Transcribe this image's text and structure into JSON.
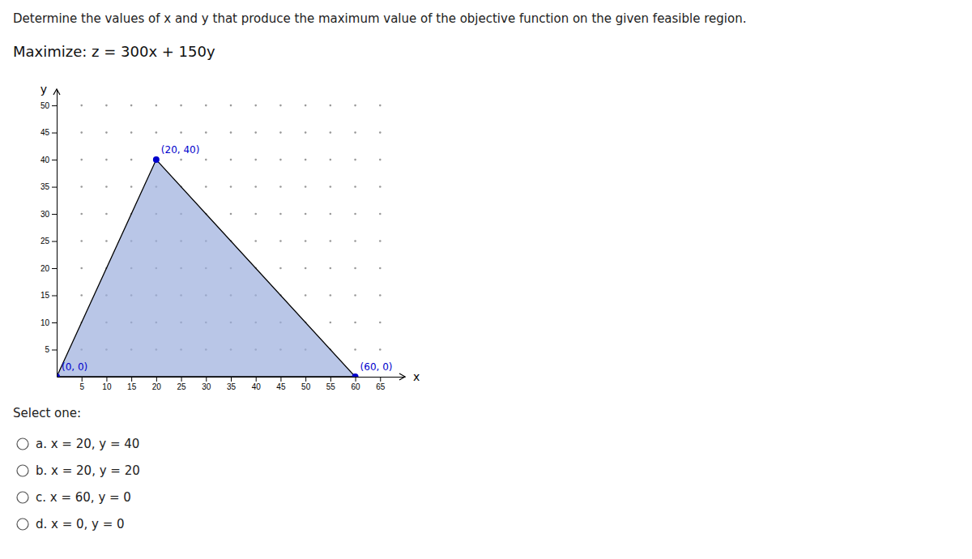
{
  "chart_data": {
    "type": "scatter",
    "title": "Determine the values of x and y that produce the maximum value of the objective function on the given feasible region.",
    "subtitle": "Maximize: z = 300x + 150y",
    "x_label": "x",
    "y_label": "y",
    "xlim": [
      0,
      70
    ],
    "ylim": [
      0,
      53
    ],
    "xticks": [
      5,
      10,
      15,
      20,
      25,
      30,
      35,
      40,
      45,
      50,
      55,
      60,
      65
    ],
    "yticks": [
      5,
      10,
      15,
      20,
      25,
      30,
      35,
      40,
      45,
      50
    ],
    "grid": true,
    "data_labels": true,
    "series": [
      {
        "type": "polygon",
        "color": "#9baedd",
        "x": [
          0,
          20,
          60
        ],
        "values": [
          0,
          40,
          0
        ]
      },
      {
        "type": "scatter",
        "color": "#0000cc",
        "x": [
          0,
          20,
          60
        ],
        "values": [
          0,
          40,
          0
        ],
        "value_labels": [
          "(0, 0)",
          "(20, 40)",
          "(60, 0)"
        ]
      }
    ],
    "annotations": [
      "Select one:",
      "a. x = 20, y = 40",
      "b. x = 20, y = 20",
      "c. x = 60, y = 0",
      "d. x = 0, y = 0"
    ]
  }
}
